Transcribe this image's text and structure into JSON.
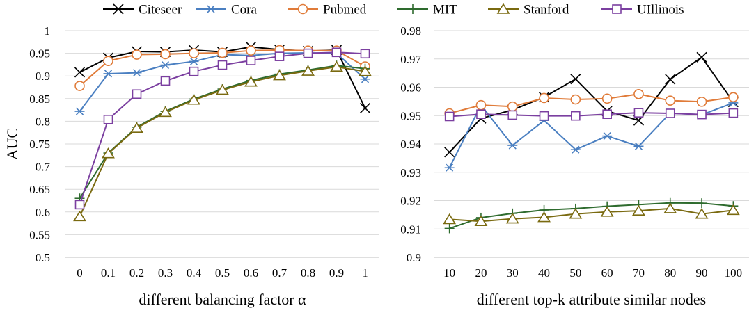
{
  "legend": [
    {
      "name": "Citeseer",
      "color": "#000000",
      "marker": "x"
    },
    {
      "name": "Cora",
      "color": "#4a7fc1",
      "marker": "asterisk"
    },
    {
      "name": "Pubmed",
      "color": "#e07b39",
      "marker": "circle"
    },
    {
      "name": "MIT",
      "color": "#2e6b2e",
      "marker": "plus"
    },
    {
      "name": "Stanford",
      "color": "#7a6a10",
      "marker": "triangle"
    },
    {
      "name": "UIllinois",
      "color": "#7b3fa0",
      "marker": "square"
    }
  ],
  "chart_data": [
    {
      "type": "line",
      "xlabel": "different balancing factor α",
      "ylabel": "AUC",
      "categories": [
        "0",
        "0.1",
        "0.2",
        "0.3",
        "0.4",
        "0.5",
        "0.6",
        "0.7",
        "0.8",
        "0.9",
        "1"
      ],
      "ylim": [
        0.5,
        1
      ],
      "yticks": [
        "0.5",
        "0.55",
        "0.6",
        "0.65",
        "0.7",
        "0.75",
        "0.8",
        "0.85",
        "0.9",
        "0.95",
        "1"
      ],
      "grid": true,
      "series": [
        {
          "name": "Citeseer",
          "values": [
            0.908,
            0.94,
            0.954,
            0.953,
            0.957,
            0.953,
            0.964,
            0.958,
            0.955,
            0.957,
            0.829
          ]
        },
        {
          "name": "Cora",
          "values": [
            0.822,
            0.905,
            0.907,
            0.924,
            0.932,
            0.947,
            0.945,
            0.95,
            0.951,
            0.95,
            0.893
          ]
        },
        {
          "name": "Pubmed",
          "values": [
            0.878,
            0.933,
            0.947,
            0.948,
            0.95,
            0.951,
            0.956,
            0.957,
            0.956,
            0.956,
            0.921
          ]
        },
        {
          "name": "MIT",
          "values": [
            0.63,
            0.73,
            0.787,
            0.822,
            0.849,
            0.871,
            0.89,
            0.904,
            0.913,
            0.923,
            0.916
          ]
        },
        {
          "name": "Stanford",
          "values": [
            0.59,
            0.729,
            0.785,
            0.82,
            0.847,
            0.869,
            0.887,
            0.901,
            0.911,
            0.92,
            0.91
          ]
        },
        {
          "name": "UIllinois",
          "values": [
            0.616,
            0.804,
            0.86,
            0.889,
            0.91,
            0.924,
            0.934,
            0.943,
            0.95,
            0.952,
            0.949
          ]
        }
      ]
    },
    {
      "type": "line",
      "xlabel": "different top-k attribute similar nodes",
      "ylabel": "",
      "categories": [
        "10",
        "20",
        "30",
        "40",
        "50",
        "60",
        "70",
        "80",
        "90",
        "100"
      ],
      "ylim": [
        0.9,
        0.98
      ],
      "yticks": [
        "0.9",
        "0.91",
        "0.92",
        "0.93",
        "0.94",
        "0.95",
        "0.96",
        "0.97",
        "0.98"
      ],
      "grid": true,
      "series": [
        {
          "name": "Citeseer",
          "values": [
            0.9371,
            0.949,
            0.952,
            0.9565,
            0.9629,
            0.9516,
            0.9483,
            0.9628,
            0.9706,
            0.9548
          ]
        },
        {
          "name": "Cora",
          "values": [
            0.9316,
            0.9537,
            0.9395,
            0.9483,
            0.938,
            0.9428,
            0.9392,
            0.9509,
            0.9503,
            0.9545
          ]
        },
        {
          "name": "Pubmed",
          "values": [
            0.9508,
            0.9537,
            0.9532,
            0.9562,
            0.9557,
            0.956,
            0.9576,
            0.9553,
            0.9549,
            0.9565
          ]
        },
        {
          "name": "MIT",
          "values": [
            0.9102,
            0.914,
            0.9155,
            0.9167,
            0.9172,
            0.918,
            0.9186,
            0.9192,
            0.9191,
            0.9181
          ]
        },
        {
          "name": "Stanford",
          "values": [
            0.9134,
            0.9127,
            0.9136,
            0.9141,
            0.9153,
            0.916,
            0.9164,
            0.9172,
            0.9153,
            0.9166
          ]
        },
        {
          "name": "UIllinois",
          "values": [
            0.9497,
            0.9505,
            0.9502,
            0.9499,
            0.9499,
            0.9505,
            0.951,
            0.9508,
            0.9504,
            0.9509
          ]
        }
      ]
    }
  ]
}
